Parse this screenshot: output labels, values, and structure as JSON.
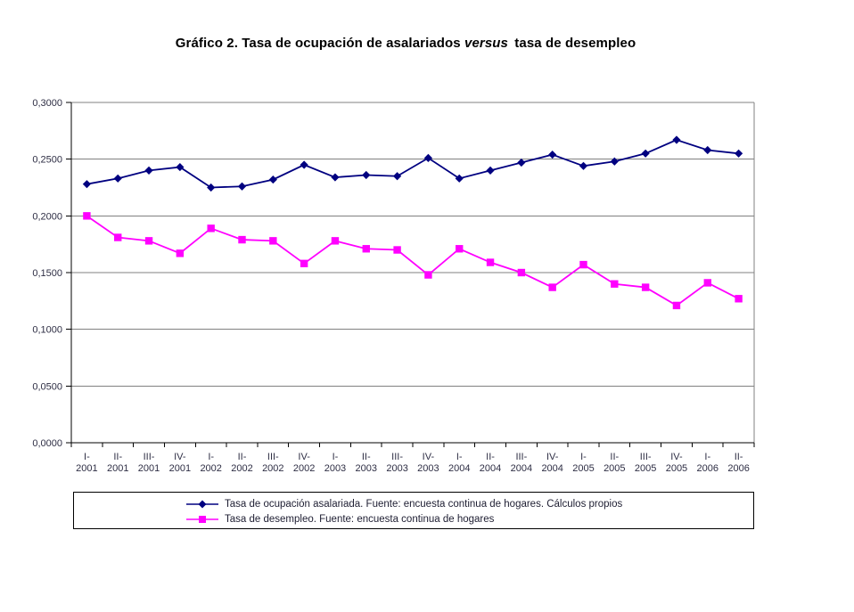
{
  "title": {
    "before": "Gráfico 2. Tasa de ocupación de asalariados ",
    "italic": "versus",
    "after": " tasa de desempleo"
  },
  "chart_data": {
    "type": "line",
    "categories": [
      "I-2001",
      "II-2001",
      "III-2001",
      "IV-2001",
      "I-2002",
      "II-2002",
      "III-2002",
      "IV-2002",
      "I-2003",
      "II-2003",
      "III-2003",
      "IV-2003",
      "I-2004",
      "II-2004",
      "III-2004",
      "IV-2004",
      "I-2005",
      "II-2005",
      "III-2005",
      "IV-2005",
      "I-2006",
      "II-2006"
    ],
    "series": [
      {
        "name": "Tasa de ocupación asalariada. Fuente: encuesta continua de hogares. Cálculos propios",
        "color": "#000080",
        "marker": "diamond",
        "values": [
          0.228,
          0.233,
          0.24,
          0.243,
          0.225,
          0.226,
          0.232,
          0.245,
          0.234,
          0.236,
          0.235,
          0.251,
          0.233,
          0.24,
          0.247,
          0.254,
          0.244,
          0.248,
          0.255,
          0.267,
          0.258,
          0.255
        ]
      },
      {
        "name": "Tasa de desempleo. Fuente: encuesta continua de hogares",
        "color": "#FF00FF",
        "marker": "square",
        "values": [
          0.2,
          0.181,
          0.178,
          0.167,
          0.189,
          0.179,
          0.178,
          0.158,
          0.178,
          0.171,
          0.17,
          0.148,
          0.171,
          0.159,
          0.15,
          0.137,
          0.157,
          0.14,
          0.137,
          0.121,
          0.141,
          0.127
        ]
      }
    ],
    "ylim": [
      0,
      0.3
    ],
    "yticks": [
      {
        "value": 0.0,
        "label": "0,0000"
      },
      {
        "value": 0.05,
        "label": "0,0500"
      },
      {
        "value": 0.1,
        "label": "0,1000"
      },
      {
        "value": 0.15,
        "label": "0,1500"
      },
      {
        "value": 0.2,
        "label": "0,2000"
      },
      {
        "value": 0.25,
        "label": "0,2500"
      },
      {
        "value": 0.3,
        "label": "0,3000"
      }
    ],
    "grid": "horizontal",
    "gridline_color": "#808080",
    "axis_color": "#000000",
    "legend_position": "bottom-box"
  }
}
